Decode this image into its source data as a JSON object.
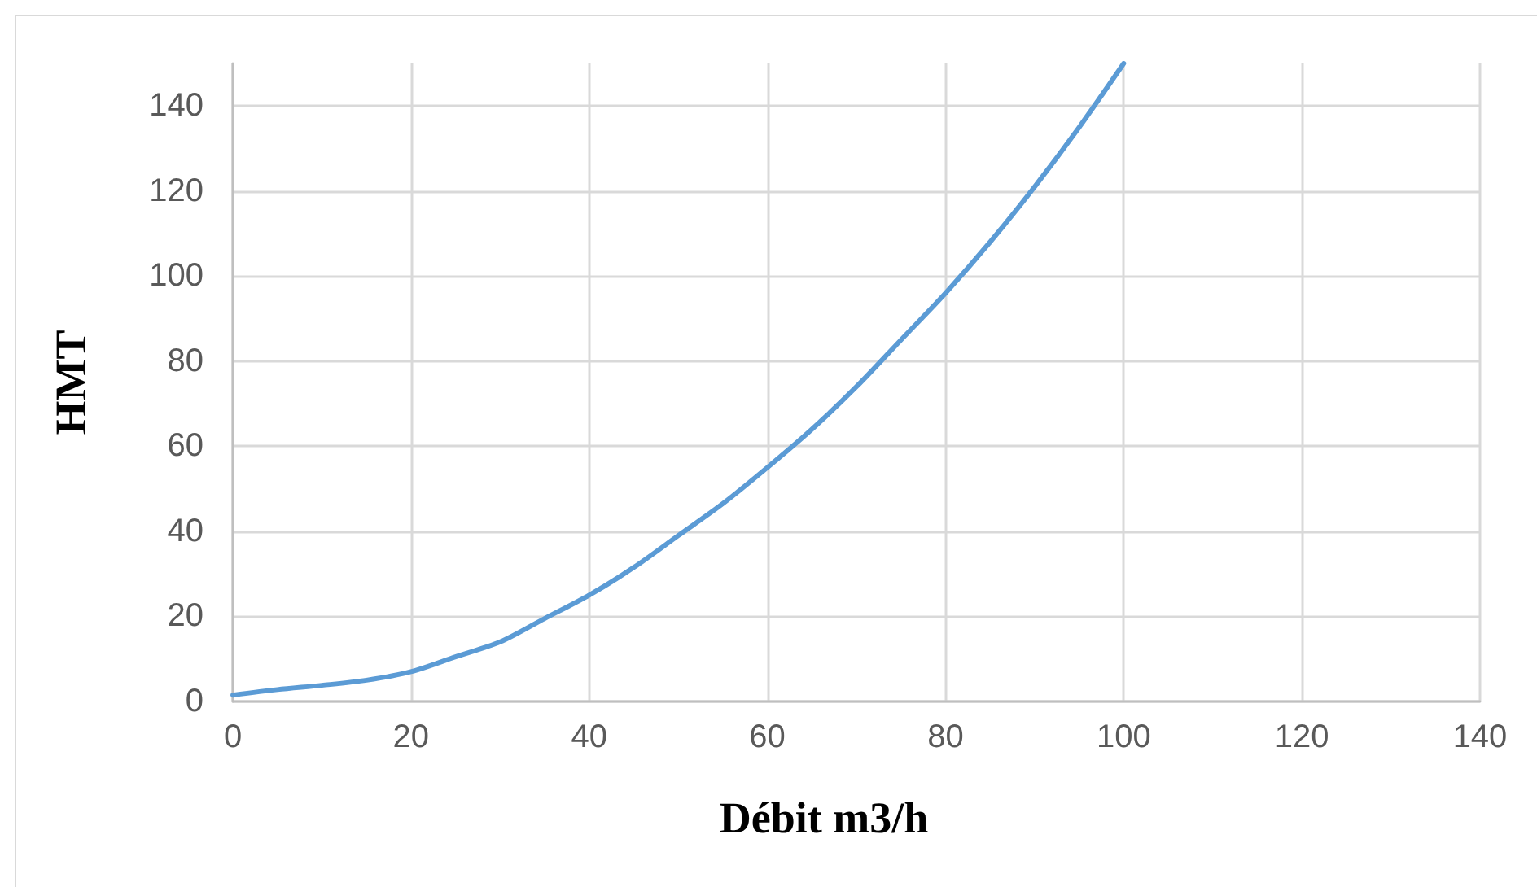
{
  "chart_data": {
    "type": "line",
    "xlabel": "Débit m3/h",
    "ylabel": "HMT",
    "x": [
      0,
      5,
      10,
      15,
      20,
      25,
      30,
      35,
      40,
      45,
      50,
      55,
      60,
      65,
      70,
      75,
      80,
      85,
      90,
      95,
      100
    ],
    "series": [
      {
        "color": "#5b9bd5",
        "values": [
          1.5,
          2.8,
          3.8,
          5,
          7,
          10.5,
          14,
          19.5,
          25,
          31.5,
          39,
          46.5,
          55,
          64,
          74,
          85,
          96,
          108,
          121,
          135,
          150
        ]
      }
    ],
    "xlim": [
      0,
      140
    ],
    "xticks": [
      0,
      20,
      40,
      60,
      80,
      100,
      120,
      140
    ],
    "ylim": [
      0,
      150
    ],
    "yticks": [
      0,
      20,
      40,
      60,
      80,
      100,
      120,
      140
    ],
    "grid": true,
    "marker": "none",
    "line_style": "solid"
  }
}
